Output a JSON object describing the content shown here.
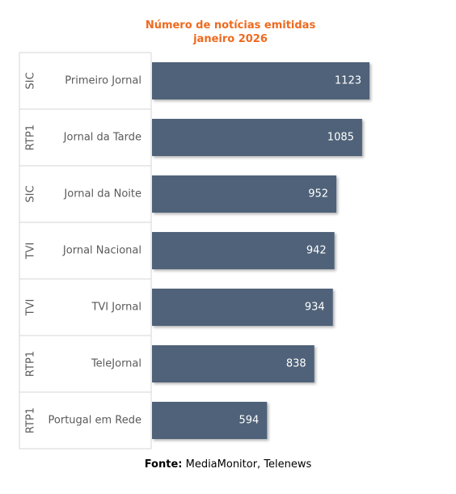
{
  "chart_data": {
    "type": "bar",
    "orientation": "horizontal",
    "title_lines": [
      "Número de notícias emitidas",
      "janeiro 2026"
    ],
    "categories": [
      {
        "channel": "SIC",
        "program": "Primeiro Jornal",
        "value": 1123
      },
      {
        "channel": "RTP1",
        "program": "Jornal da Tarde",
        "value": 1085
      },
      {
        "channel": "SIC",
        "program": "Jornal da Noite",
        "value": 952
      },
      {
        "channel": "TVI",
        "program": "Jornal Nacional",
        "value": 942
      },
      {
        "channel": "TVI",
        "program": "TVI Jornal",
        "value": 934
      },
      {
        "channel": "RTP1",
        "program": "TeleJornal",
        "value": 838
      },
      {
        "channel": "RTP1",
        "program": "Portugal em Rede",
        "value": 594
      }
    ],
    "xlim": [
      0,
      1250
    ],
    "grid": false,
    "legend": "none",
    "colors": {
      "bar": "#4f6279",
      "bar_label": "#ffffff",
      "title": "#ee6a1f",
      "axis_text": "#5a5a5a",
      "grid_line": "#d6d6d6"
    }
  },
  "footer": {
    "label": "Fonte:",
    "text": " MediaMonitor, Telenews"
  }
}
